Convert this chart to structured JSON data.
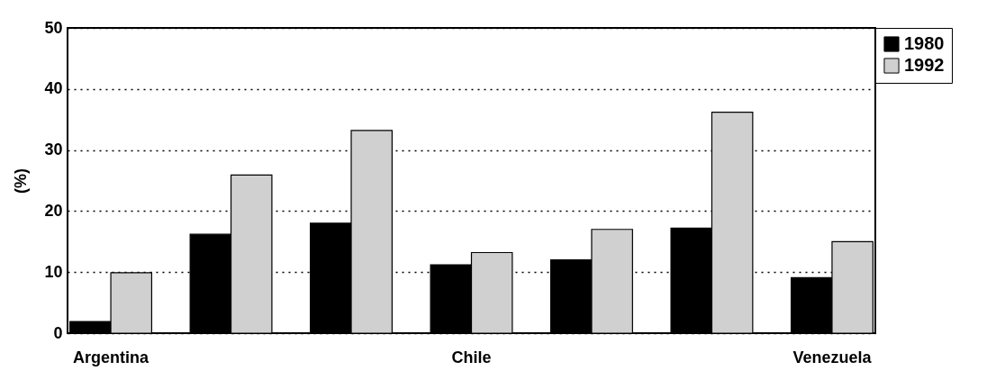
{
  "chart_data": {
    "type": "bar",
    "ylabel": "(%)",
    "categories": [
      "Argentina",
      null,
      null,
      "Chile",
      null,
      null,
      "Venezuela"
    ],
    "series": [
      {
        "name": "1980",
        "color": "#000000",
        "values": [
          1.9,
          16.2,
          18.0,
          11.2,
          12.0,
          17.2,
          9.1
        ]
      },
      {
        "name": "1992",
        "color": "#d0d0d0",
        "values": [
          9.9,
          25.9,
          33.2,
          13.2,
          17.0,
          36.2,
          15.0
        ]
      }
    ],
    "ylim": [
      0,
      50
    ],
    "yticks": [
      0,
      10,
      20,
      30,
      40,
      50
    ],
    "grid": "y",
    "legend": "right",
    "line_style": "dotted"
  }
}
